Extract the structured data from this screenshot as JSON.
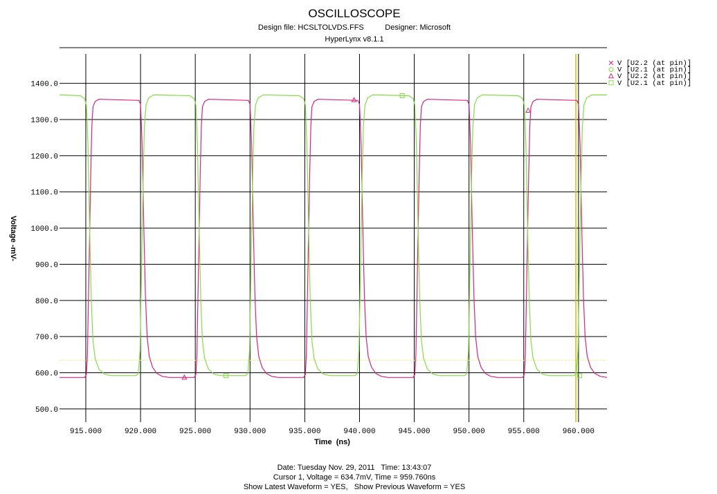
{
  "header": {
    "title": "OSCILLOSCOPE",
    "design_line": "Design file: HCSLTOLVDS.FFS          Designer: Microsoft",
    "version": "HyperLynx v8.1.1"
  },
  "footer": {
    "date_line": "Date: Tuesday Nov. 29, 2011   Time: 13:43:07",
    "cursor_line": "Cursor 1, Voltage = 634.7mV, Time = 959.760ns",
    "show_line": "Show Latest Waveform = YES,   Show Previous Waveform = YES"
  },
  "colors": {
    "magenta": "#e0207a",
    "green": "#80e040",
    "grid": "#000000",
    "cursor_vertical": "#c8c800",
    "cursor_horizontal": "#f0f080"
  },
  "chart_data": {
    "type": "line",
    "xlabel": "Time  (ns)",
    "ylabel": "Voltage -mV-",
    "xlim": [
      912.6,
      962.6
    ],
    "ylim": [
      463.5,
      1481.5
    ],
    "x_ticks": [
      915,
      920,
      925,
      930,
      935,
      940,
      945,
      950,
      955,
      960
    ],
    "x_tick_labels": [
      "915.000",
      "920.000",
      "925.000",
      "930.000",
      "935.000",
      "940.000",
      "945.000",
      "950.000",
      "955.000",
      "960.000"
    ],
    "y_ticks": [
      500,
      600,
      700,
      800,
      900,
      1000,
      1100,
      1200,
      1300,
      1400
    ],
    "y_tick_labels": [
      "500.0",
      "600.0",
      "700.0",
      "800.0",
      "900.0",
      "1000.0",
      "1100.0",
      "1200.0",
      "1300.0",
      "1400.0"
    ],
    "grid": true,
    "legend_position": "top-right",
    "cursor": {
      "time_ns": 959.76,
      "voltage_mV": 634.7
    },
    "series": [
      {
        "name": "V [U2.2 (at pin)]",
        "marker_symbol": "×",
        "color": "#e0207a",
        "marker_points": [],
        "points": [
          [
            912.6,
            587
          ],
          [
            914.9,
            587
          ],
          [
            915.05,
            595
          ],
          [
            915.15,
            650
          ],
          [
            915.3,
            900
          ],
          [
            915.45,
            1150
          ],
          [
            915.55,
            1280
          ],
          [
            915.65,
            1335
          ],
          [
            915.85,
            1350
          ],
          [
            916.2,
            1356
          ],
          [
            919.85,
            1353
          ],
          [
            920.0,
            1342
          ],
          [
            920.15,
            1230
          ],
          [
            920.3,
            1000
          ],
          [
            920.45,
            810
          ],
          [
            920.6,
            700
          ],
          [
            920.8,
            645
          ],
          [
            921.1,
            615
          ],
          [
            921.5,
            598
          ],
          [
            922.0,
            590
          ],
          [
            922.6,
            587
          ],
          [
            924.9,
            587
          ],
          [
            925.05,
            595
          ],
          [
            925.15,
            650
          ],
          [
            925.3,
            900
          ],
          [
            925.45,
            1150
          ],
          [
            925.55,
            1280
          ],
          [
            925.65,
            1335
          ],
          [
            925.85,
            1350
          ],
          [
            926.2,
            1356
          ],
          [
            929.85,
            1353
          ],
          [
            930.0,
            1342
          ],
          [
            930.15,
            1230
          ],
          [
            930.3,
            1000
          ],
          [
            930.45,
            810
          ],
          [
            930.6,
            700
          ],
          [
            930.8,
            645
          ],
          [
            931.1,
            615
          ],
          [
            931.5,
            598
          ],
          [
            932.0,
            590
          ],
          [
            932.6,
            587
          ],
          [
            934.9,
            587
          ],
          [
            935.05,
            595
          ],
          [
            935.15,
            650
          ],
          [
            935.3,
            900
          ],
          [
            935.45,
            1150
          ],
          [
            935.55,
            1280
          ],
          [
            935.65,
            1335
          ],
          [
            935.85,
            1350
          ],
          [
            936.2,
            1356
          ],
          [
            939.85,
            1353
          ],
          [
            940.0,
            1342
          ],
          [
            940.15,
            1230
          ],
          [
            940.3,
            1000
          ],
          [
            940.45,
            810
          ],
          [
            940.6,
            700
          ],
          [
            940.8,
            645
          ],
          [
            941.1,
            615
          ],
          [
            941.5,
            598
          ],
          [
            942.0,
            590
          ],
          [
            942.6,
            587
          ],
          [
            944.9,
            587
          ],
          [
            945.05,
            595
          ],
          [
            945.15,
            650
          ],
          [
            945.3,
            900
          ],
          [
            945.45,
            1150
          ],
          [
            945.55,
            1280
          ],
          [
            945.65,
            1335
          ],
          [
            945.85,
            1350
          ],
          [
            946.2,
            1356
          ],
          [
            949.85,
            1353
          ],
          [
            950.0,
            1342
          ],
          [
            950.15,
            1230
          ],
          [
            950.3,
            1000
          ],
          [
            950.45,
            810
          ],
          [
            950.6,
            700
          ],
          [
            950.8,
            645
          ],
          [
            951.1,
            615
          ],
          [
            951.5,
            598
          ],
          [
            952.0,
            590
          ],
          [
            952.6,
            587
          ],
          [
            954.9,
            587
          ],
          [
            955.05,
            595
          ],
          [
            955.15,
            650
          ],
          [
            955.3,
            900
          ],
          [
            955.45,
            1150
          ],
          [
            955.55,
            1280
          ],
          [
            955.65,
            1335
          ],
          [
            955.85,
            1350
          ],
          [
            956.2,
            1356
          ],
          [
            959.85,
            1353
          ],
          [
            960.0,
            1342
          ],
          [
            960.15,
            1230
          ],
          [
            960.3,
            1000
          ],
          [
            960.45,
            810
          ],
          [
            960.6,
            700
          ],
          [
            960.8,
            645
          ],
          [
            961.1,
            615
          ],
          [
            961.5,
            598
          ],
          [
            962.0,
            590
          ],
          [
            962.6,
            587
          ]
        ]
      },
      {
        "name": "V [U2.1 (at pin)]",
        "marker_symbol": "○",
        "color": "#80e040",
        "marker_points": [],
        "points": [
          [
            912.6,
            1368
          ],
          [
            914.5,
            1366
          ],
          [
            914.9,
            1358
          ],
          [
            915.05,
            1340
          ],
          [
            915.2,
            1230
          ],
          [
            915.35,
            1000
          ],
          [
            915.5,
            800
          ],
          [
            915.65,
            690
          ],
          [
            915.85,
            640
          ],
          [
            916.2,
            610
          ],
          [
            916.7,
            596
          ],
          [
            917.3,
            592
          ],
          [
            919.6,
            592
          ],
          [
            919.8,
            598
          ],
          [
            919.95,
            660
          ],
          [
            920.1,
            900
          ],
          [
            920.25,
            1150
          ],
          [
            920.35,
            1280
          ],
          [
            920.5,
            1340
          ],
          [
            920.75,
            1360
          ],
          [
            921.2,
            1368
          ],
          [
            924.5,
            1366
          ],
          [
            924.9,
            1358
          ],
          [
            925.05,
            1340
          ],
          [
            925.2,
            1230
          ],
          [
            925.35,
            1000
          ],
          [
            925.5,
            800
          ],
          [
            925.65,
            690
          ],
          [
            925.85,
            640
          ],
          [
            926.2,
            610
          ],
          [
            926.7,
            596
          ],
          [
            927.3,
            592
          ],
          [
            929.6,
            592
          ],
          [
            929.8,
            598
          ],
          [
            929.95,
            660
          ],
          [
            930.1,
            900
          ],
          [
            930.25,
            1150
          ],
          [
            930.35,
            1280
          ],
          [
            930.5,
            1340
          ],
          [
            930.75,
            1360
          ],
          [
            931.2,
            1368
          ],
          [
            934.5,
            1366
          ],
          [
            934.9,
            1358
          ],
          [
            935.05,
            1340
          ],
          [
            935.2,
            1230
          ],
          [
            935.35,
            1000
          ],
          [
            935.5,
            800
          ],
          [
            935.65,
            690
          ],
          [
            935.85,
            640
          ],
          [
            936.2,
            610
          ],
          [
            936.7,
            596
          ],
          [
            937.3,
            592
          ],
          [
            939.6,
            592
          ],
          [
            939.8,
            598
          ],
          [
            939.95,
            660
          ],
          [
            940.1,
            900
          ],
          [
            940.25,
            1150
          ],
          [
            940.35,
            1280
          ],
          [
            940.5,
            1340
          ],
          [
            940.75,
            1360
          ],
          [
            941.2,
            1368
          ],
          [
            944.5,
            1366
          ],
          [
            944.9,
            1358
          ],
          [
            945.05,
            1340
          ],
          [
            945.2,
            1230
          ],
          [
            945.35,
            1000
          ],
          [
            945.5,
            800
          ],
          [
            945.65,
            690
          ],
          [
            945.85,
            640
          ],
          [
            946.2,
            610
          ],
          [
            946.7,
            596
          ],
          [
            947.3,
            592
          ],
          [
            949.6,
            592
          ],
          [
            949.8,
            598
          ],
          [
            949.95,
            660
          ],
          [
            950.1,
            900
          ],
          [
            950.25,
            1150
          ],
          [
            950.35,
            1280
          ],
          [
            950.5,
            1340
          ],
          [
            950.75,
            1360
          ],
          [
            951.2,
            1368
          ],
          [
            954.5,
            1366
          ],
          [
            954.9,
            1358
          ],
          [
            955.05,
            1340
          ],
          [
            955.2,
            1230
          ],
          [
            955.35,
            1000
          ],
          [
            955.5,
            800
          ],
          [
            955.65,
            690
          ],
          [
            955.85,
            640
          ],
          [
            956.2,
            610
          ],
          [
            956.7,
            596
          ],
          [
            957.3,
            592
          ],
          [
            959.6,
            592
          ],
          [
            959.8,
            598
          ],
          [
            959.95,
            660
          ],
          [
            960.1,
            900
          ],
          [
            960.25,
            1150
          ],
          [
            960.35,
            1280
          ],
          [
            960.5,
            1340
          ],
          [
            960.75,
            1360
          ],
          [
            961.2,
            1368
          ],
          [
            962.6,
            1368
          ]
        ]
      },
      {
        "name": "V [U2.2 (at pin)]",
        "marker_symbol": "△",
        "color": "#e0207a",
        "marker_points": [
          [
            924.0,
            587
          ],
          [
            939.5,
            1354
          ],
          [
            955.4,
            1325
          ]
        ],
        "points": []
      },
      {
        "name": "V [U2.1 (at pin)]",
        "marker_symbol": "□",
        "color": "#80e040",
        "marker_points": [
          [
            927.8,
            592
          ],
          [
            943.9,
            1366
          ],
          [
            960.1,
            592
          ]
        ],
        "points": []
      }
    ]
  }
}
